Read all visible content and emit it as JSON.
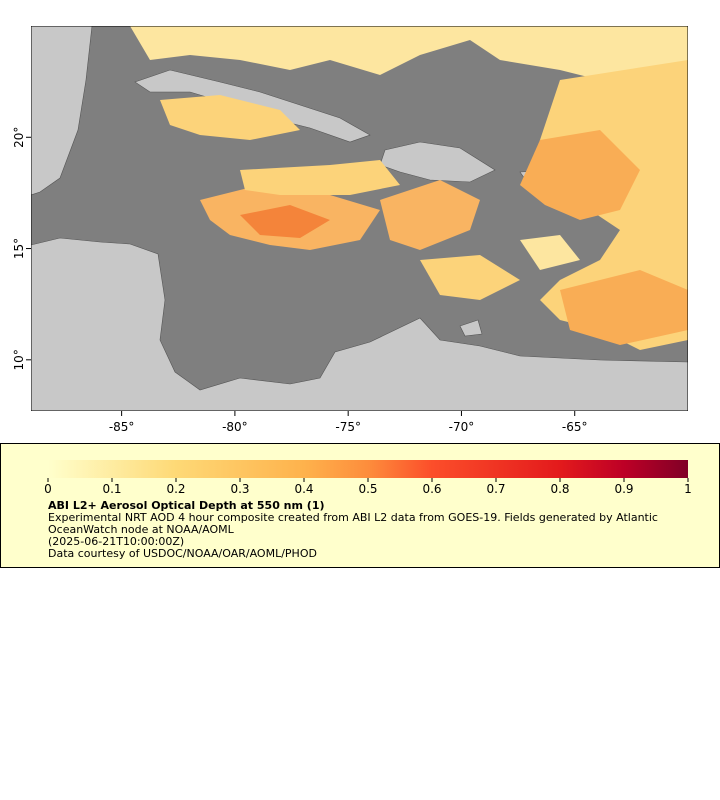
{
  "map": {
    "xlim": [
      -89,
      -60
    ],
    "ylim": [
      7.7,
      25
    ],
    "xticks": [
      {
        "value": -85,
        "label": "-85°"
      },
      {
        "value": -80,
        "label": "-80°"
      },
      {
        "value": -75,
        "label": "-75°"
      },
      {
        "value": -70,
        "label": "-70°"
      },
      {
        "value": -65,
        "label": "-65°"
      }
    ],
    "yticks": [
      {
        "value": 10,
        "label": "10°"
      },
      {
        "value": 15,
        "label": "15°"
      },
      {
        "value": 20,
        "label": "20°"
      }
    ]
  },
  "legend": {
    "ticks": [
      0,
      0.1,
      0.2,
      0.3,
      0.4,
      0.5,
      0.6,
      0.7,
      0.8,
      0.9,
      1
    ],
    "title": "ABI L2+ Aerosol Optical Depth at 550 nm (1)",
    "description": "Experimental NRT AOD 4 hour composite created from ABI L2 data from GOES-19. Fields generated by Atlantic OceanWatch node at NOAA/AOML",
    "time": "(2025-06-21T10:00:00Z)",
    "credit": "Data courtesy of USDOC/NOAA/OAR/AOML/PHOD"
  }
}
